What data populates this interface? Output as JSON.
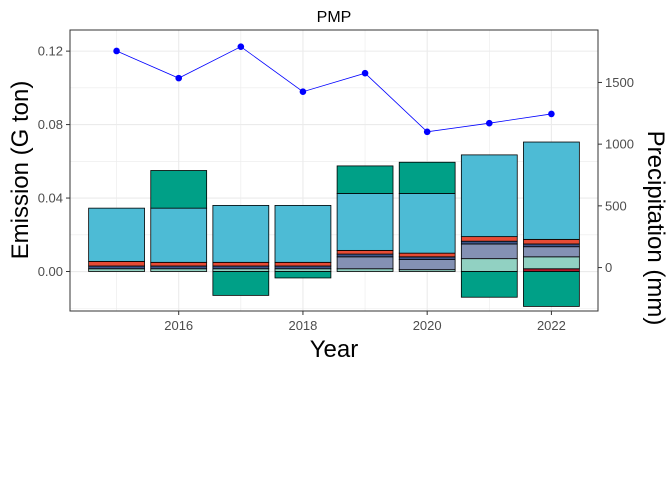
{
  "chart_data": {
    "type": "bar",
    "title": "PMP",
    "xlabel": "Year",
    "ylabel": "Emission (G ton)",
    "y2label": "Precipitation (mm)",
    "x": [
      2015,
      2016,
      2017,
      2018,
      2019,
      2020,
      2021,
      2022
    ],
    "xticks": [
      2016,
      2018,
      2020,
      2022
    ],
    "xlim": [
      2014.25,
      2022.75
    ],
    "ylim": [
      -0.0215,
      0.1315
    ],
    "yticks": [
      0.0,
      0.04,
      0.08,
      0.12
    ],
    "ytick_labels": [
      "0.00",
      "0.04",
      "0.08",
      "0.12"
    ],
    "y2lim": [
      -352,
      1925
    ],
    "y2ticks": [
      0,
      500,
      1000,
      1500
    ],
    "y2tick_labels": [
      "0",
      "500",
      "1000",
      "1500"
    ],
    "stack_colors": {
      "dark_red": "#b2182b",
      "mint": "#91d1c2",
      "lavender": "#8491b4",
      "navy": "#3c5488",
      "red": "#e64b35",
      "sky": "#4dbbd5",
      "teal": "#00a087"
    },
    "bars": [
      {
        "year": 2015,
        "pos": [
          [
            "mint",
            0.0015
          ],
          [
            "navy",
            0.0015
          ],
          [
            "red",
            0.0025
          ],
          [
            "sky",
            0.029
          ]
        ],
        "neg": []
      },
      {
        "year": 2016,
        "pos": [
          [
            "mint",
            0.0015
          ],
          [
            "navy",
            0.0015
          ],
          [
            "red",
            0.002
          ],
          [
            "sky",
            0.0295
          ],
          [
            "teal",
            0.0205
          ]
        ],
        "neg": []
      },
      {
        "year": 2017,
        "pos": [
          [
            "mint",
            0.0015
          ],
          [
            "navy",
            0.0015
          ],
          [
            "red",
            0.002
          ],
          [
            "sky",
            0.031
          ]
        ],
        "neg": [
          [
            "teal",
            0.013
          ]
        ]
      },
      {
        "year": 2018,
        "pos": [
          [
            "mint",
            0.0015
          ],
          [
            "navy",
            0.0015
          ],
          [
            "red",
            0.002
          ],
          [
            "sky",
            0.031
          ]
        ],
        "neg": [
          [
            "teal",
            0.0035
          ]
        ]
      },
      {
        "year": 2019,
        "pos": [
          [
            "mint",
            0.0015
          ],
          [
            "lavender",
            0.0065
          ],
          [
            "navy",
            0.0015
          ],
          [
            "red",
            0.002
          ],
          [
            "sky",
            0.031
          ],
          [
            "teal",
            0.015
          ]
        ],
        "neg": []
      },
      {
        "year": 2020,
        "pos": [
          [
            "mint",
            0.001
          ],
          [
            "lavender",
            0.0055
          ],
          [
            "navy",
            0.0015
          ],
          [
            "red",
            0.002
          ],
          [
            "sky",
            0.0325
          ],
          [
            "teal",
            0.017
          ]
        ],
        "neg": []
      },
      {
        "year": 2021,
        "pos": [
          [
            "mint",
            0.007
          ],
          [
            "lavender",
            0.008
          ],
          [
            "navy",
            0.0015
          ],
          [
            "red",
            0.0025
          ],
          [
            "sky",
            0.0445
          ]
        ],
        "neg": [
          [
            "teal",
            0.014
          ]
        ]
      },
      {
        "year": 2022,
        "pos": [
          [
            "dark_red",
            0.0015
          ],
          [
            "mint",
            0.0065
          ],
          [
            "lavender",
            0.0055
          ],
          [
            "navy",
            0.0015
          ],
          [
            "red",
            0.0025
          ],
          [
            "sky",
            0.053
          ]
        ],
        "neg": [
          [
            "teal",
            0.019
          ]
        ]
      }
    ],
    "precipitation": {
      "color": "#0000ff",
      "values": [
        1755,
        1535,
        1790,
        1425,
        1575,
        1100,
        1170,
        1245
      ]
    },
    "grid": true
  }
}
